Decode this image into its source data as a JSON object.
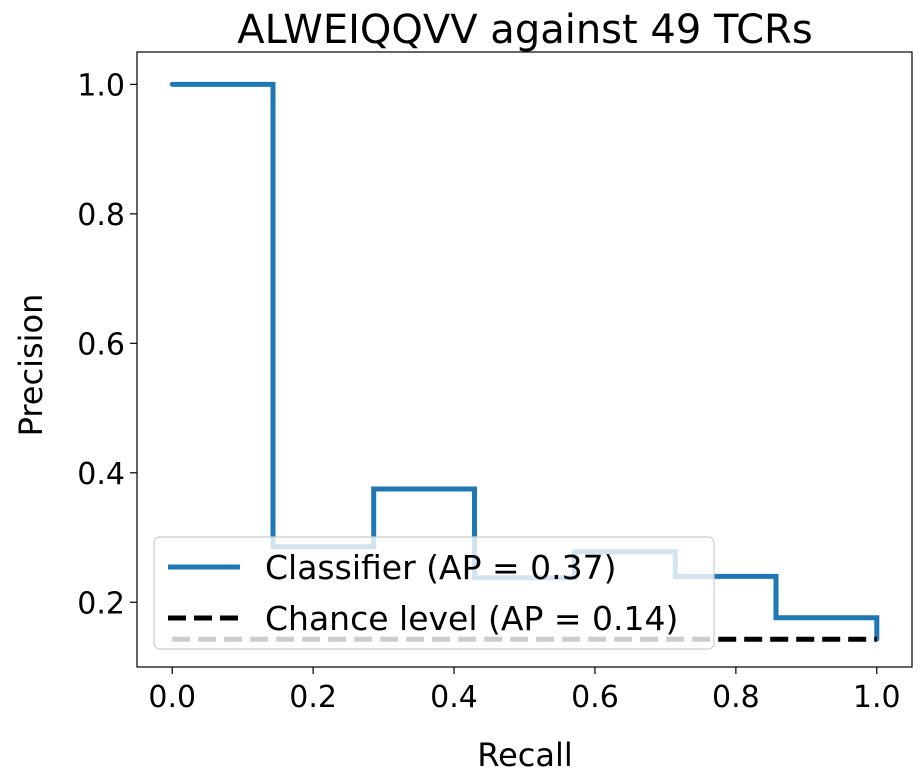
{
  "chart_data": {
    "type": "line",
    "title": "ALWEIQQVV against 49 TCRs",
    "xlabel": "Recall",
    "ylabel": "Precision",
    "xlim": [
      -0.05,
      1.05
    ],
    "ylim": [
      0.1,
      1.05
    ],
    "xticks": [
      0.0,
      0.2,
      0.4,
      0.6,
      0.8,
      1.0
    ],
    "xtick_labels": [
      "0.0",
      "0.2",
      "0.4",
      "0.6",
      "0.8",
      "1.0"
    ],
    "yticks": [
      0.2,
      0.4,
      0.6,
      0.8,
      1.0
    ],
    "ytick_labels": [
      "0.2",
      "0.4",
      "0.6",
      "0.8",
      "1.0"
    ],
    "grid": false,
    "legend_position": "lower-left",
    "series": [
      {
        "name": "Classifier (AP = 0.37)",
        "style": "solid",
        "color": "#1f77b4",
        "drawstyle": "steps-post",
        "x": [
          0.0,
          0.143,
          0.143,
          0.286,
          0.286,
          0.429,
          0.429,
          0.571,
          0.571,
          0.714,
          0.714,
          0.857,
          0.857,
          1.0,
          1.0
        ],
        "y": [
          1.0,
          1.0,
          0.286,
          0.286,
          0.375,
          0.375,
          0.238,
          0.238,
          0.278,
          0.278,
          0.24,
          0.24,
          0.176,
          0.176,
          0.143
        ]
      },
      {
        "name": "Chance level (AP = 0.14)",
        "style": "dashed",
        "color": "#000000",
        "x": [
          0.0,
          1.0
        ],
        "y": [
          0.143,
          0.143
        ]
      }
    ]
  }
}
